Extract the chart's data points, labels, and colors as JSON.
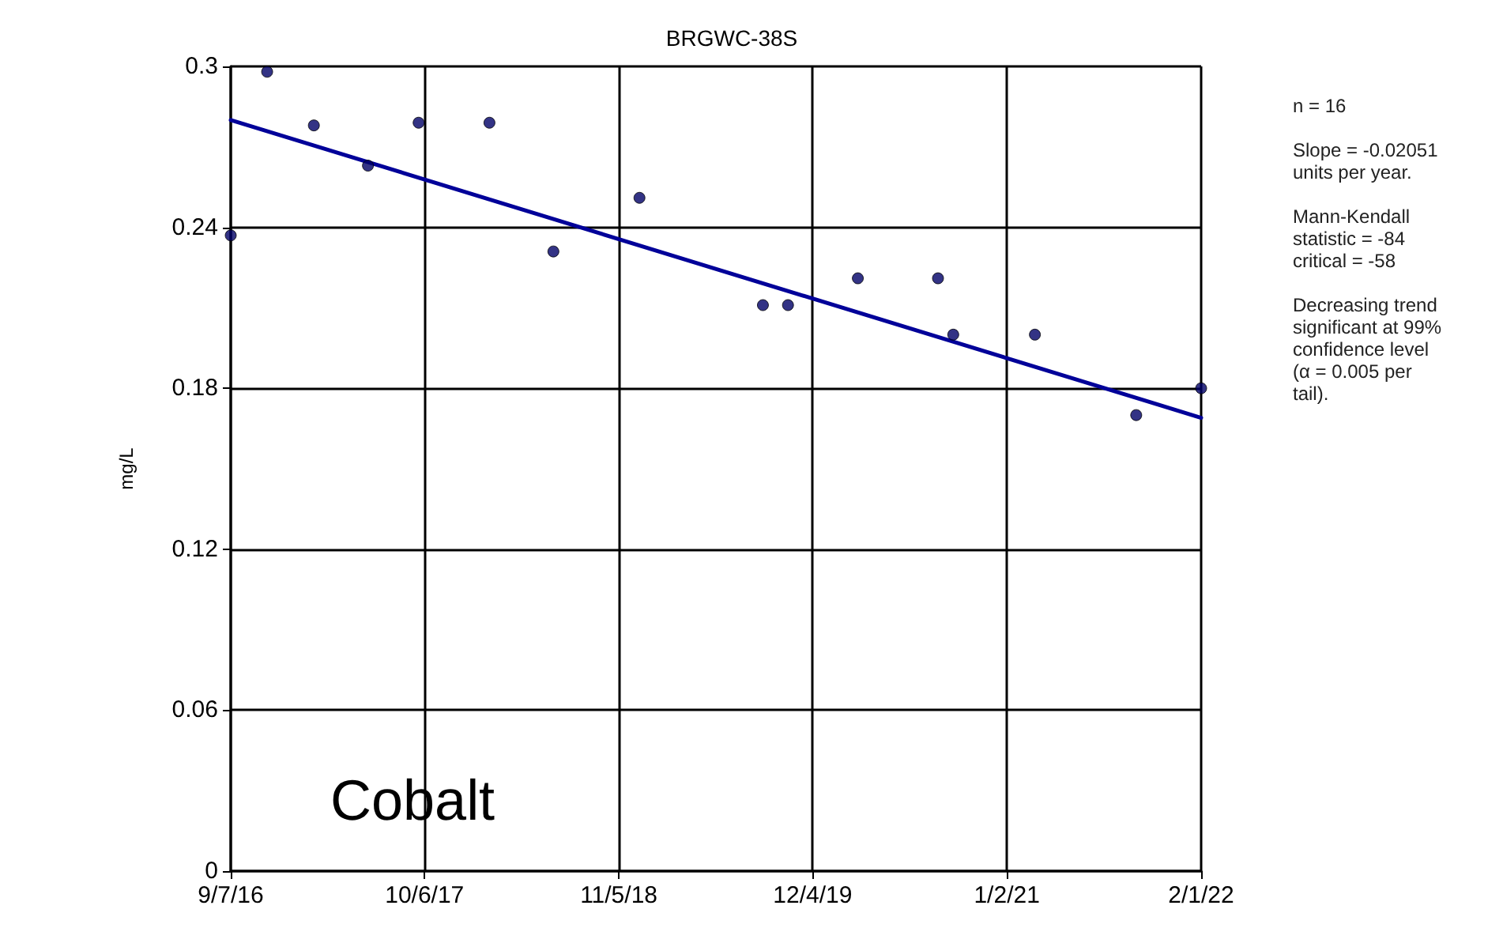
{
  "chart_data": {
    "type": "scatter",
    "title": "BRGWC-38S",
    "ylabel": "mg/L",
    "annotations": [
      "Cobalt",
      "n = 16",
      "Slope = -0.02051\nunits per year.",
      "Mann-Kendall\nstatistic = -84\ncritical = -58",
      "Decreasing trend\nsignificant at 99%\nconfidence level\n(α = 0.005 per\ntail)."
    ],
    "series": [
      {
        "color": "#000066",
        "marker": "circle",
        "x": [
          "2016-09-07",
          "2016-11-20",
          "2017-02-23",
          "2017-06-13",
          "2017-09-24",
          "2018-02-15",
          "2018-06-25",
          "2018-12-17",
          "2019-08-25",
          "2019-10-15",
          "2020-03-05",
          "2020-08-15",
          "2020-09-15",
          "2021-02-28",
          "2021-09-22",
          "2022-02-01"
        ],
        "values": [
          0.237,
          0.298,
          0.278,
          0.263,
          0.279,
          0.279,
          0.231,
          0.251,
          0.211,
          0.211,
          0.221,
          0.221,
          0.2,
          0.2,
          0.17,
          0.18
        ]
      },
      {
        "type": "line",
        "color": "#000099",
        "x": [
          "2016-09-07",
          "2022-02-01"
        ],
        "values": [
          0.28,
          0.169
        ]
      }
    ],
    "xlim": [
      "2016-09-07",
      "2022-02-01"
    ],
    "xticks": [
      {
        "value": "2016-09-07",
        "label": "9/7/16"
      },
      {
        "value": "2017-10-06",
        "label": "10/6/17"
      },
      {
        "value": "2018-11-05",
        "label": "11/5/18"
      },
      {
        "value": "2019-12-04",
        "label": "12/4/19"
      },
      {
        "value": "2021-01-02",
        "label": "1/2/21"
      },
      {
        "value": "2022-02-01",
        "label": "2/1/22"
      }
    ],
    "ylim": [
      0,
      0.3
    ],
    "yticks": [
      0,
      0.06,
      0.12,
      0.18,
      0.24,
      0.3
    ],
    "grid": true
  }
}
